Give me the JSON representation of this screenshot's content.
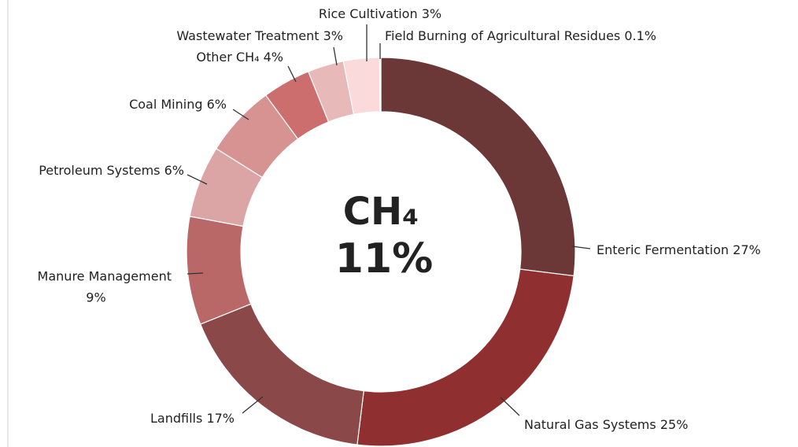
{
  "chart_data": {
    "type": "donut",
    "center_title": "CH₄",
    "center_value": "11%",
    "categories": [
      "Enteric Fermentation",
      "Natural Gas Systems",
      "Landfills",
      "Manure Management",
      "Petroleum Systems",
      "Coal Mining",
      "Other CH₄",
      "Wastewater Treatment",
      "Rice Cultivation",
      "Field Burning of Agricultural Residues"
    ],
    "values": [
      27,
      25,
      17,
      9,
      6,
      6,
      4,
      3,
      3,
      0.1
    ],
    "value_labels": [
      "27%",
      "25%",
      "17%",
      "9%",
      "6%",
      "6%",
      "4%",
      "3%",
      "3%",
      "0.1%"
    ],
    "colors": [
      "#6b3737",
      "#8f2f2f",
      "#8b4848",
      "#b96767",
      "#dba5a5",
      "#d79292",
      "#cd6e6e",
      "#e7b9b9",
      "#fadada",
      "#f7d3d3"
    ]
  }
}
